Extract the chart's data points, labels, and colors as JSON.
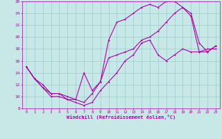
{
  "xlabel": "Windchill (Refroidissement éolien,°C)",
  "xlim": [
    -0.5,
    23.5
  ],
  "ylim": [
    8,
    26
  ],
  "xticks": [
    0,
    1,
    2,
    3,
    4,
    5,
    6,
    7,
    8,
    9,
    10,
    11,
    12,
    13,
    14,
    15,
    16,
    17,
    18,
    19,
    20,
    21,
    22,
    23
  ],
  "yticks": [
    8,
    10,
    12,
    14,
    16,
    18,
    20,
    22,
    24,
    26
  ],
  "bg_color": "#c8e8e8",
  "line_color": "#aa00aa",
  "grid_color": "#99cccc",
  "line1_x": [
    0,
    1,
    2,
    3,
    4,
    5,
    6,
    7,
    8,
    9,
    10,
    11,
    12,
    13,
    14,
    15,
    16,
    17,
    18,
    19,
    20,
    21,
    22,
    23
  ],
  "line1_y": [
    15,
    13,
    11.5,
    10.5,
    10.5,
    9.5,
    9.5,
    14,
    11,
    12.5,
    19.5,
    22.5,
    23,
    24,
    25,
    25.5,
    25,
    26,
    26,
    25,
    24,
    19,
    17.5,
    18.5
  ],
  "line2_x": [
    0,
    1,
    2,
    3,
    4,
    5,
    6,
    7,
    8,
    9,
    10,
    11,
    12,
    13,
    14,
    15,
    16,
    17,
    18,
    19,
    20,
    21,
    22,
    23
  ],
  "line2_y": [
    15,
    13,
    12,
    10.5,
    10.5,
    10,
    9.5,
    9,
    10.5,
    12.5,
    16.5,
    17,
    17.5,
    18,
    19.5,
    20,
    21,
    22.5,
    24,
    25,
    23.5,
    17.5,
    17.5,
    18.5
  ],
  "line3_x": [
    0,
    1,
    2,
    3,
    4,
    5,
    6,
    7,
    8,
    9,
    10,
    11,
    12,
    13,
    14,
    15,
    16,
    17,
    18,
    19,
    20,
    21,
    22,
    23
  ],
  "line3_y": [
    15,
    13,
    11.5,
    10,
    10,
    9.5,
    9,
    8.5,
    9,
    11,
    12.5,
    14,
    16,
    17,
    19,
    19.5,
    17,
    16,
    17,
    18,
    17.5,
    17.5,
    18,
    18
  ]
}
